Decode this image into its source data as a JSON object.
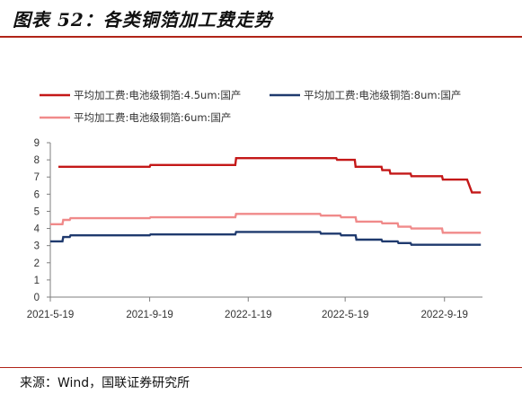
{
  "page": {
    "title": "图表 52：各类铜箔加工费走势",
    "source": "来源：Wind，国联证券研究所"
  },
  "chart_data": {
    "type": "line",
    "title": "",
    "xlabel": "",
    "ylabel": "",
    "ylim": [
      0,
      9
    ],
    "yticks": [
      0,
      1,
      2,
      3,
      4,
      5,
      6,
      7,
      8,
      9
    ],
    "xlim": [
      "2021-05-19",
      "2022-11-05"
    ],
    "xticks": [
      "2021-5-19",
      "2021-9-19",
      "2022-1-19",
      "2022-5-19",
      "2022-9-19"
    ],
    "grid": false,
    "legend_position": "top",
    "series": [
      {
        "name": "平均加工费:电池级铜箔:4.5um:国产",
        "color": "#c41818",
        "points": [
          [
            "2021-05-29",
            7.6
          ],
          [
            "2021-09-19",
            7.6
          ],
          [
            "2021-09-20",
            7.7
          ],
          [
            "2022-01-03",
            7.7
          ],
          [
            "2022-01-04",
            8.1
          ],
          [
            "2022-05-08",
            8.1
          ],
          [
            "2022-05-09",
            8.0
          ],
          [
            "2022-05-31",
            8.0
          ],
          [
            "2022-06-01",
            7.6
          ],
          [
            "2022-07-03",
            7.6
          ],
          [
            "2022-07-04",
            7.4
          ],
          [
            "2022-07-13",
            7.4
          ],
          [
            "2022-07-14",
            7.2
          ],
          [
            "2022-08-08",
            7.2
          ],
          [
            "2022-08-09",
            7.05
          ],
          [
            "2022-09-16",
            7.05
          ],
          [
            "2022-09-17",
            6.85
          ],
          [
            "2022-10-17",
            6.85
          ],
          [
            "2022-10-23",
            6.1
          ],
          [
            "2022-11-03",
            6.1
          ]
        ]
      },
      {
        "name": "平均加工费:电池级铜箔:8um:国产",
        "color": "#1f3a6e",
        "points": [
          [
            "2021-05-19",
            3.25
          ],
          [
            "2021-06-03",
            3.25
          ],
          [
            "2021-06-04",
            3.5
          ],
          [
            "2021-06-12",
            3.5
          ],
          [
            "2021-06-13",
            3.6
          ],
          [
            "2021-09-19",
            3.6
          ],
          [
            "2021-09-20",
            3.65
          ],
          [
            "2022-01-03",
            3.65
          ],
          [
            "2022-01-04",
            3.8
          ],
          [
            "2022-04-18",
            3.8
          ],
          [
            "2022-04-19",
            3.7
          ],
          [
            "2022-05-13",
            3.7
          ],
          [
            "2022-05-14",
            3.6
          ],
          [
            "2022-06-01",
            3.6
          ],
          [
            "2022-06-02",
            3.35
          ],
          [
            "2022-07-03",
            3.35
          ],
          [
            "2022-07-04",
            3.25
          ],
          [
            "2022-07-23",
            3.25
          ],
          [
            "2022-07-24",
            3.15
          ],
          [
            "2022-08-08",
            3.15
          ],
          [
            "2022-08-09",
            3.05
          ],
          [
            "2022-11-03",
            3.05
          ]
        ]
      },
      {
        "name": "平均加工费:电池级铜箔:6um:国产",
        "color": "#f08a8a",
        "points": [
          [
            "2021-05-19",
            4.25
          ],
          [
            "2021-06-03",
            4.25
          ],
          [
            "2021-06-04",
            4.5
          ],
          [
            "2021-06-12",
            4.5
          ],
          [
            "2021-06-13",
            4.6
          ],
          [
            "2021-09-19",
            4.6
          ],
          [
            "2021-09-20",
            4.65
          ],
          [
            "2022-01-03",
            4.65
          ],
          [
            "2022-01-04",
            4.85
          ],
          [
            "2022-04-18",
            4.85
          ],
          [
            "2022-04-19",
            4.75
          ],
          [
            "2022-05-13",
            4.75
          ],
          [
            "2022-05-14",
            4.65
          ],
          [
            "2022-06-01",
            4.65
          ],
          [
            "2022-06-02",
            4.4
          ],
          [
            "2022-07-03",
            4.4
          ],
          [
            "2022-07-04",
            4.3
          ],
          [
            "2022-07-23",
            4.3
          ],
          [
            "2022-07-24",
            4.1
          ],
          [
            "2022-08-08",
            4.1
          ],
          [
            "2022-08-09",
            4.0
          ],
          [
            "2022-09-16",
            4.0
          ],
          [
            "2022-09-17",
            3.75
          ],
          [
            "2022-11-03",
            3.75
          ]
        ]
      }
    ]
  }
}
